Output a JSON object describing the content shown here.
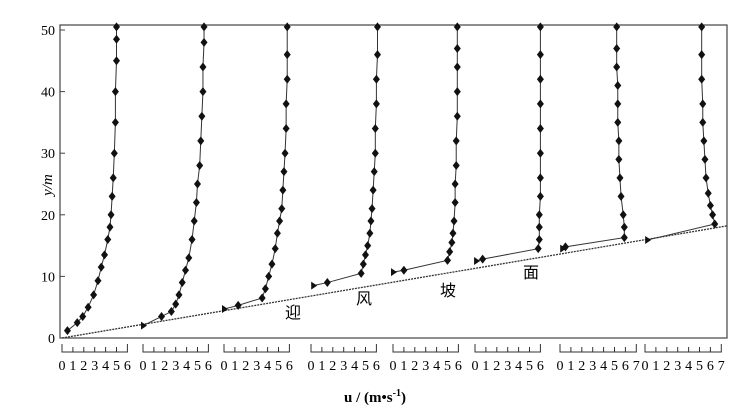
{
  "chart_data": {
    "type": "line",
    "title": "",
    "xlabel": "u / (m•s",
    "xlabel_sup": "-1",
    "xlabel_close": ")",
    "ylabel": "y/m",
    "ylim": [
      0,
      50
    ],
    "yticks": [
      "0",
      "10",
      "20",
      "30",
      "40",
      "50"
    ],
    "slope_labels": [
      "迎",
      "风",
      "坡",
      "面"
    ],
    "slope_line": {
      "start_y": 0,
      "end_y": 18.2
    },
    "grid": false,
    "profiles": [
      {
        "name": "profile-1",
        "xticks": [
          "0",
          "1",
          "2",
          "3",
          "4",
          "5",
          "6"
        ],
        "points": [
          [
            0.5,
            1.2
          ],
          [
            1.4,
            2.5
          ],
          [
            1.9,
            3.5
          ],
          [
            2.4,
            5
          ],
          [
            2.9,
            7
          ],
          [
            3.3,
            9.3
          ],
          [
            3.6,
            11.5
          ],
          [
            3.9,
            13.5
          ],
          [
            4.2,
            16
          ],
          [
            4.4,
            18
          ],
          [
            4.5,
            20
          ],
          [
            4.6,
            23
          ],
          [
            4.7,
            26
          ],
          [
            4.8,
            30
          ],
          [
            4.9,
            35
          ],
          [
            4.9,
            40
          ],
          [
            5.0,
            45
          ],
          [
            5.0,
            48.5
          ],
          [
            5.0,
            50.5
          ]
        ]
      },
      {
        "name": "profile-2",
        "xticks": [
          "0",
          "1",
          "2",
          "3",
          "4",
          "5",
          "6"
        ],
        "points": [
          [
            0,
            2
          ],
          [
            1.7,
            3.5
          ],
          [
            2.6,
            4.3
          ],
          [
            3.0,
            5.5
          ],
          [
            3.3,
            7
          ],
          [
            3.6,
            9
          ],
          [
            3.9,
            11
          ],
          [
            4.2,
            13
          ],
          [
            4.5,
            16
          ],
          [
            4.7,
            19
          ],
          [
            4.9,
            22
          ],
          [
            5.0,
            25
          ],
          [
            5.2,
            28
          ],
          [
            5.3,
            32
          ],
          [
            5.4,
            36
          ],
          [
            5.5,
            40
          ],
          [
            5.5,
            44
          ],
          [
            5.6,
            48
          ],
          [
            5.6,
            50.5
          ]
        ]
      },
      {
        "name": "profile-3",
        "xticks": [
          "0",
          "1",
          "2",
          "3",
          "4",
          "5",
          "6"
        ],
        "points": [
          [
            0,
            4.7
          ],
          [
            1.3,
            5.3
          ],
          [
            3.5,
            6.5
          ],
          [
            3.8,
            8
          ],
          [
            4.1,
            10
          ],
          [
            4.4,
            12
          ],
          [
            4.7,
            14.5
          ],
          [
            4.9,
            17
          ],
          [
            5.1,
            19
          ],
          [
            5.3,
            21
          ],
          [
            5.4,
            24
          ],
          [
            5.5,
            27
          ],
          [
            5.6,
            30
          ],
          [
            5.7,
            34
          ],
          [
            5.7,
            38
          ],
          [
            5.8,
            42
          ],
          [
            5.8,
            46
          ],
          [
            5.8,
            50.5
          ]
        ]
      },
      {
        "name": "profile-4",
        "xticks": [
          "0",
          "1",
          "2",
          "3",
          "4",
          "5",
          "6"
        ],
        "points": [
          [
            0.2,
            8.5
          ],
          [
            1.5,
            9
          ],
          [
            4.6,
            10.5
          ],
          [
            4.8,
            12
          ],
          [
            5.0,
            13.5
          ],
          [
            5.2,
            15
          ],
          [
            5.4,
            17
          ],
          [
            5.5,
            19
          ],
          [
            5.6,
            21
          ],
          [
            5.7,
            24
          ],
          [
            5.8,
            27
          ],
          [
            5.9,
            30
          ],
          [
            5.9,
            34
          ],
          [
            6.0,
            38
          ],
          [
            6.0,
            42
          ],
          [
            6.1,
            46
          ],
          [
            6.1,
            50.5
          ]
        ]
      },
      {
        "name": "profile-5",
        "xticks": [
          "0",
          "1",
          "2",
          "3",
          "4",
          "5",
          "6"
        ],
        "points": [
          [
            0,
            10.7
          ],
          [
            1.0,
            11
          ],
          [
            5.0,
            12.6
          ],
          [
            5.2,
            14
          ],
          [
            5.4,
            15.5
          ],
          [
            5.5,
            17
          ],
          [
            5.6,
            19
          ],
          [
            5.7,
            22
          ],
          [
            5.7,
            25
          ],
          [
            5.8,
            28
          ],
          [
            5.8,
            32
          ],
          [
            5.9,
            36
          ],
          [
            5.9,
            40
          ],
          [
            5.9,
            44
          ],
          [
            5.9,
            47
          ],
          [
            5.9,
            50.5
          ]
        ]
      },
      {
        "name": "profile-6",
        "xticks": [
          "0",
          "1",
          "2",
          "3",
          "4",
          "5",
          "6"
        ],
        "points": [
          [
            0.1,
            12.5
          ],
          [
            0.7,
            12.8
          ],
          [
            5.8,
            14.5
          ],
          [
            5.9,
            16
          ],
          [
            5.9,
            18
          ],
          [
            5.9,
            20
          ],
          [
            6.0,
            23
          ],
          [
            6.0,
            26
          ],
          [
            6.0,
            30
          ],
          [
            6.0,
            34
          ],
          [
            6.0,
            38
          ],
          [
            6.0,
            42
          ],
          [
            6.0,
            46
          ],
          [
            6.0,
            50.5
          ]
        ]
      },
      {
        "name": "profile-7",
        "xticks": [
          "0",
          "1",
          "2",
          "3",
          "4",
          "5",
          "6",
          "7"
        ],
        "points": [
          [
            0.2,
            14.5
          ],
          [
            0.5,
            14.8
          ],
          [
            5.9,
            16.3
          ],
          [
            5.9,
            18
          ],
          [
            5.8,
            20
          ],
          [
            5.6,
            23
          ],
          [
            5.5,
            26
          ],
          [
            5.4,
            29
          ],
          [
            5.4,
            32
          ],
          [
            5.3,
            35
          ],
          [
            5.3,
            38
          ],
          [
            5.3,
            41
          ],
          [
            5.2,
            44
          ],
          [
            5.2,
            47
          ],
          [
            5.2,
            50.5
          ]
        ]
      },
      {
        "name": "profile-8",
        "xticks": [
          "0",
          "1",
          "2",
          "3",
          "4",
          "5",
          "6",
          "7"
        ],
        "points": [
          [
            0.2,
            15.9
          ],
          [
            6.4,
            18.5
          ],
          [
            6.2,
            20
          ],
          [
            6.0,
            21.5
          ],
          [
            5.8,
            23.5
          ],
          [
            5.6,
            26
          ],
          [
            5.5,
            29
          ],
          [
            5.4,
            32
          ],
          [
            5.3,
            35
          ],
          [
            5.3,
            38
          ],
          [
            5.2,
            42
          ],
          [
            5.2,
            46
          ],
          [
            5.2,
            50.5
          ]
        ]
      }
    ]
  }
}
